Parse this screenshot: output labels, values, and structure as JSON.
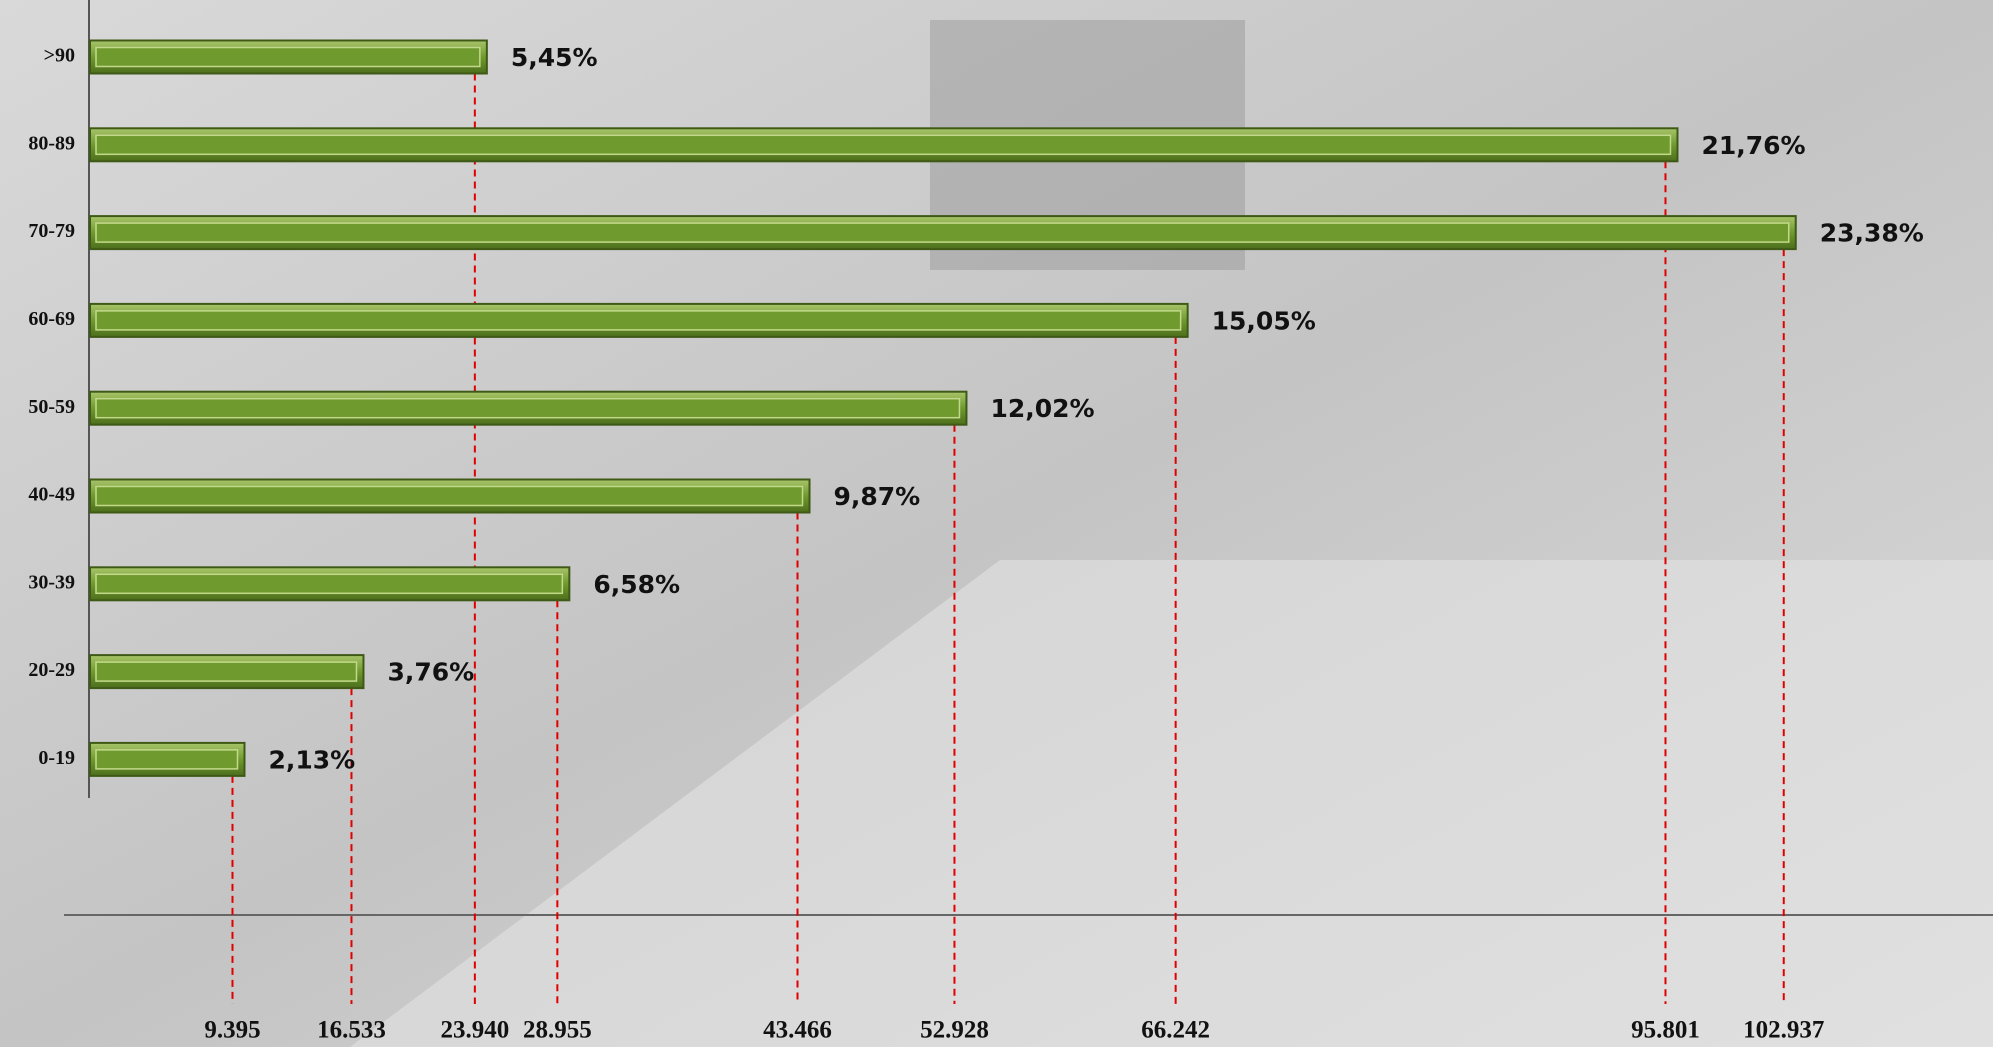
{
  "chart_data": {
    "type": "bar",
    "orientation": "horizontal",
    "categories": [
      ">90",
      "80-89",
      "70-79",
      "60-69",
      "50-59",
      "40-49",
      "30-39",
      "20-29",
      "0-19"
    ],
    "values": [
      5.45,
      21.76,
      23.38,
      15.05,
      12.02,
      9.87,
      6.58,
      3.76,
      2.13
    ],
    "value_labels": [
      "5,45%",
      "21,76%",
      "23,38%",
      "15,05%",
      "12,02%",
      "9,87%",
      "6,58%",
      "3,76%",
      "2,13%"
    ],
    "counts": [
      {
        "value": 23940,
        "label": "23.940"
      },
      {
        "value": 95801,
        "label": "95.801"
      },
      {
        "value": 102937,
        "label": "102.937"
      },
      {
        "value": 66242,
        "label": "66.242"
      },
      {
        "value": 52928,
        "label": "52.928"
      },
      {
        "value": 43466,
        "label": "43.466"
      },
      {
        "value": 28955,
        "label": "28.955"
      },
      {
        "value": 16533,
        "label": "16.533"
      },
      {
        "value": 9395,
        "label": "9.395"
      }
    ],
    "color": "#6f9a2e",
    "guide_color": "#e00000"
  }
}
